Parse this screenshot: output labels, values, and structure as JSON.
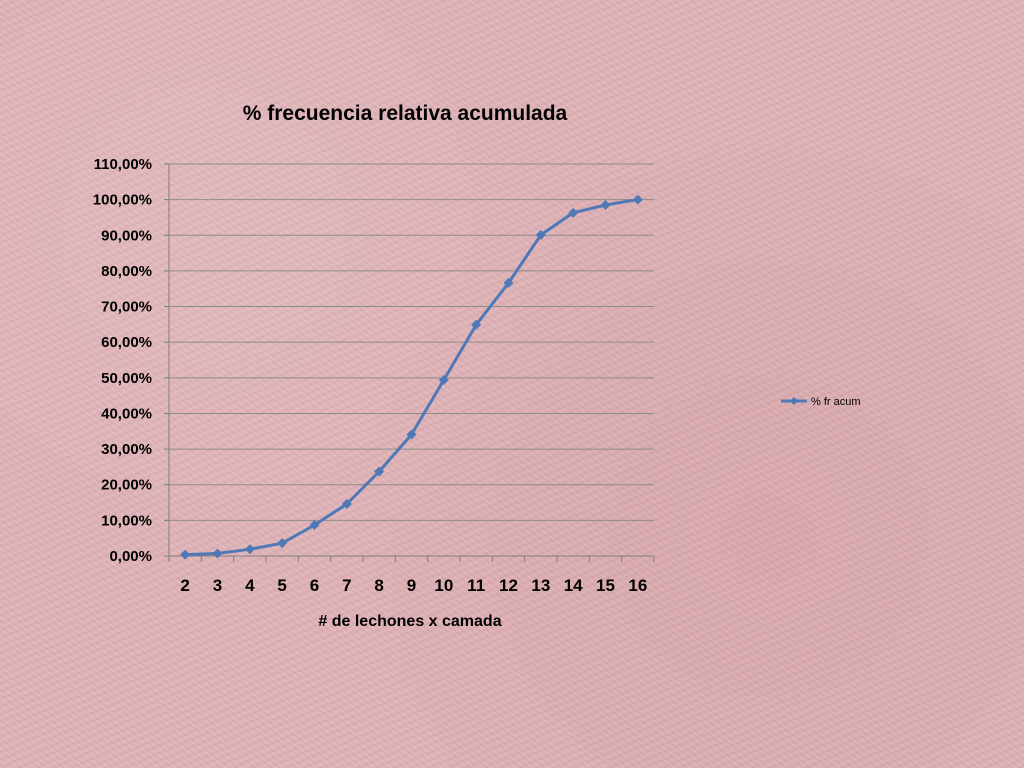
{
  "chart_data": {
    "type": "line",
    "title": "% frecuencia relativa acumulada",
    "xlabel": "# de lechones x camada",
    "ylabel": "",
    "categories": [
      "2",
      "3",
      "4",
      "5",
      "6",
      "7",
      "8",
      "9",
      "10",
      "11",
      "12",
      "13",
      "14",
      "15",
      "16"
    ],
    "series": [
      {
        "name": "% fr acum",
        "color": "#4f79b6",
        "values": [
          0.4,
          0.7,
          1.9,
          3.6,
          8.7,
          14.6,
          23.7,
          34.1,
          49.4,
          64.9,
          76.6,
          90.1,
          96.3,
          98.5,
          100.0
        ]
      }
    ],
    "ylim": [
      0,
      110
    ],
    "yticks": [
      "0,00%",
      "10,00%",
      "20,00%",
      "30,00%",
      "40,00%",
      "50,00%",
      "60,00%",
      "70,00%",
      "80,00%",
      "90,00%",
      "100,00%",
      "110,00%"
    ],
    "grid": true,
    "legend_position": "right"
  }
}
